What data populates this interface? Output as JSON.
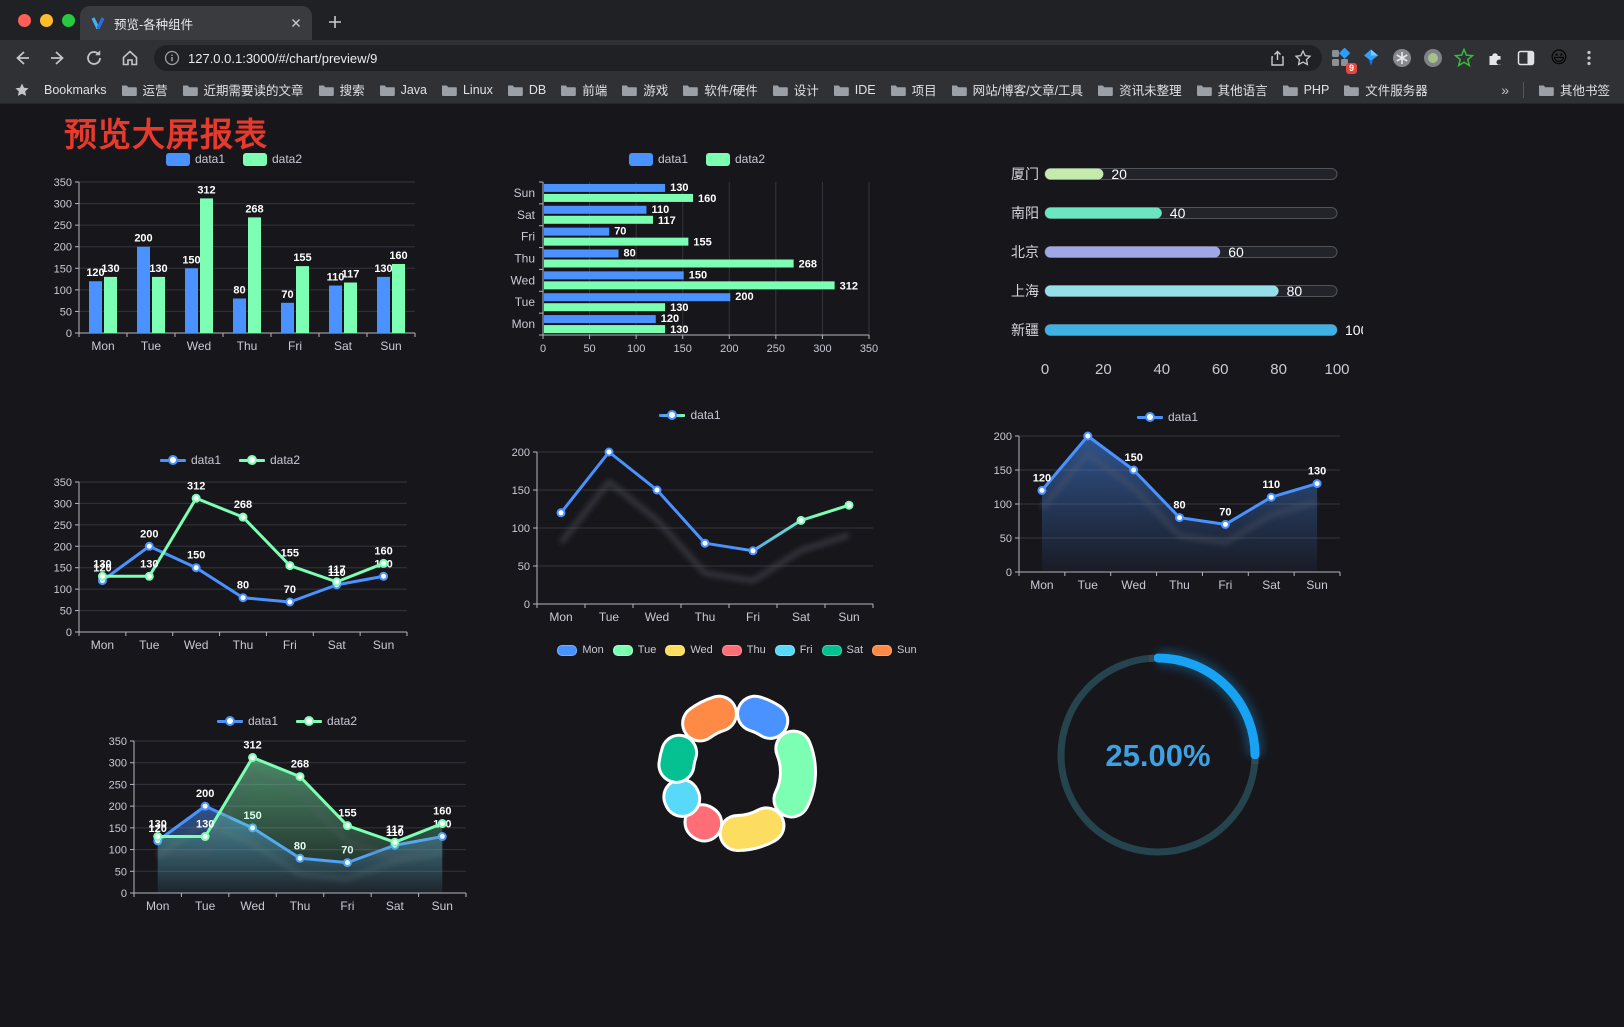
{
  "browser": {
    "tab_title": "预览-各种组件",
    "url": "127.0.0.1:3000/#/chart/preview/9",
    "bookmarks_label": "Bookmarks",
    "bookmark_folders": [
      "运营",
      "近期需要读的文章",
      "搜索",
      "Java",
      "Linux",
      "DB",
      "前端",
      "游戏",
      "软件/硬件",
      "设计",
      "IDE",
      "项目",
      "网站/博客/文章/工具",
      "资讯未整理",
      "其他语言",
      "PHP",
      "文件服务器"
    ],
    "bookmarks_overflow": "»",
    "other_bookmarks_label": "其他书签",
    "extension_badge": "9",
    "profile_emoji": "😃"
  },
  "page": {
    "title": "预览大屏报表",
    "title_color": "#e73a2c",
    "background": "#17161b"
  },
  "chart_data": [
    {
      "id": "grouped-bar",
      "type": "bar",
      "categories": [
        "Mon",
        "Tue",
        "Wed",
        "Thu",
        "Fri",
        "Sat",
        "Sun"
      ],
      "series": [
        {
          "name": "data1",
          "color": "#4992ff",
          "values": [
            120,
            200,
            150,
            80,
            70,
            110,
            130
          ]
        },
        {
          "name": "data2",
          "color": "#7cffb2",
          "values": [
            130,
            130,
            312,
            268,
            155,
            117,
            160
          ]
        }
      ],
      "ylim": [
        0,
        350
      ],
      "ytick": 50,
      "labels": true,
      "legend_position": "top",
      "grid": true
    },
    {
      "id": "horizontal-bar",
      "type": "bar",
      "orientation": "horizontal",
      "display_order": "Sun top, Mon bottom",
      "categories": [
        "Mon",
        "Tue",
        "Wed",
        "Thu",
        "Fri",
        "Sat",
        "Sun"
      ],
      "series": [
        {
          "name": "data1",
          "color": "#4992ff",
          "values": [
            120,
            200,
            150,
            80,
            70,
            110,
            130
          ]
        },
        {
          "name": "data2",
          "color": "#7cffb2",
          "values": [
            130,
            130,
            312,
            268,
            155,
            117,
            160
          ]
        }
      ],
      "xlim": [
        0,
        350
      ],
      "xtick": 50,
      "labels": true
    },
    {
      "id": "progress-bars",
      "type": "bar",
      "orientation": "horizontal-progress",
      "categories": [
        "厦门",
        "南阳",
        "北京",
        "上海",
        "新疆"
      ],
      "values": [
        20,
        40,
        60,
        80,
        100
      ],
      "colors": [
        "#c4ebad",
        "#6be6c1",
        "#a0a7e6",
        "#96dee8",
        "#3fb1e3"
      ],
      "xlim": [
        0,
        100
      ],
      "xticks": [
        0,
        20,
        40,
        60,
        80,
        100
      ],
      "labels": true
    },
    {
      "id": "line-dual",
      "type": "line",
      "categories": [
        "Mon",
        "Tue",
        "Wed",
        "Thu",
        "Fri",
        "Sat",
        "Sun"
      ],
      "series": [
        {
          "name": "data1",
          "color": "#4992ff",
          "values": [
            120,
            200,
            150,
            80,
            70,
            110,
            130
          ]
        },
        {
          "name": "data2",
          "color": "#7cffb2",
          "values": [
            130,
            130,
            312,
            268,
            155,
            117,
            160
          ]
        }
      ],
      "ylim": [
        0,
        350
      ],
      "ytick": 50,
      "labels": true
    },
    {
      "id": "line-gradient",
      "type": "line",
      "categories": [
        "Mon",
        "Tue",
        "Wed",
        "Thu",
        "Fri",
        "Sat",
        "Sun"
      ],
      "series": [
        {
          "name": "data1",
          "color": "#4992ff",
          "color_end": "#7cffb2",
          "values": [
            120,
            200,
            150,
            80,
            70,
            110,
            130
          ]
        }
      ],
      "ylim": [
        0,
        200
      ],
      "ytick": 50,
      "labels": false
    },
    {
      "id": "line-area",
      "type": "area",
      "categories": [
        "Mon",
        "Tue",
        "Wed",
        "Thu",
        "Fri",
        "Sat",
        "Sun"
      ],
      "series": [
        {
          "name": "data1",
          "color": "#4992ff",
          "area": true,
          "values": [
            120,
            200,
            150,
            80,
            70,
            110,
            130
          ]
        }
      ],
      "ylim": [
        0,
        200
      ],
      "ytick": 50,
      "labels": true
    },
    {
      "id": "line-dual-area",
      "type": "area",
      "categories": [
        "Mon",
        "Tue",
        "Wed",
        "Thu",
        "Fri",
        "Sat",
        "Sun"
      ],
      "series": [
        {
          "name": "data1",
          "color": "#4992ff",
          "area": true,
          "values": [
            120,
            200,
            150,
            80,
            70,
            110,
            130
          ]
        },
        {
          "name": "data2",
          "color": "#7cffb2",
          "area": true,
          "values": [
            130,
            130,
            312,
            268,
            155,
            117,
            160
          ]
        }
      ],
      "ylim": [
        0,
        350
      ],
      "ytick": 50,
      "labels": true
    },
    {
      "id": "donut",
      "type": "pie",
      "categories": [
        "Mon",
        "Tue",
        "Wed",
        "Thu",
        "Fri",
        "Sat",
        "Sun"
      ],
      "values": [
        120,
        200,
        150,
        80,
        70,
        110,
        130
      ],
      "colors": [
        "#4992ff",
        "#7cffb2",
        "#fddd60",
        "#ff6e76",
        "#58d9f9",
        "#05c091",
        "#ff8a45"
      ],
      "legend_position": "top"
    },
    {
      "id": "gauge",
      "type": "gauge",
      "value": 25,
      "max": 100,
      "label": "25.00%",
      "progress_color": "#18a2f4",
      "track_color": "#25444e",
      "text_color": "#3da1e2"
    }
  ]
}
